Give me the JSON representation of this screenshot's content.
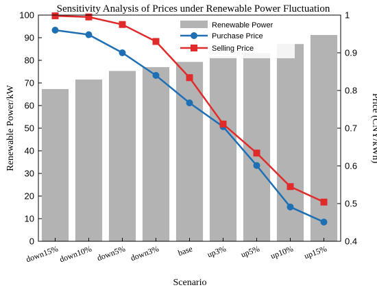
{
  "chart_data": {
    "type": "bar",
    "title": "Sensitivity Analysis of Prices under Renewable Power Fluctuation",
    "xlabel": "Scenario",
    "ylabel": "Renewable Power/kW",
    "ylabel_right": "Price (CNY/kWh)",
    "categories": [
      "down15%",
      "down10%",
      "down5%",
      "down3%",
      "base",
      "up3%",
      "up5%",
      "up10%",
      "up15%"
    ],
    "ylim": [
      0,
      100
    ],
    "ylim_right": [
      0.4,
      1.0
    ],
    "yticks": [
      "0",
      "10",
      "20",
      "30",
      "40",
      "50",
      "60",
      "70",
      "80",
      "90",
      "100"
    ],
    "yticks_right": [
      "0.4",
      "0.5",
      "0.6",
      "0.7",
      "0.8",
      "0.9",
      "1"
    ],
    "legend_position": "top-right",
    "grid": false,
    "series": [
      {
        "name": "Renewable Power",
        "kind": "bar",
        "axis": "left",
        "color": "#b3b3b3",
        "values": [
          67.3,
          71.5,
          75.3,
          77.0,
          79.3,
          81.7,
          83.2,
          87.2,
          91.2
        ]
      },
      {
        "name": "Purchase Price",
        "kind": "line",
        "axis": "right",
        "color": "#1f6fb4",
        "marker": "circle",
        "values": [
          0.96,
          0.948,
          0.9,
          0.84,
          0.767,
          0.704,
          0.601,
          0.491,
          0.451
        ]
      },
      {
        "name": "Selling Price",
        "kind": "line",
        "axis": "right",
        "color": "#e02b2b",
        "marker": "square",
        "values": [
          0.998,
          0.995,
          0.975,
          0.93,
          0.834,
          0.711,
          0.634,
          0.545,
          0.504
        ]
      }
    ]
  }
}
